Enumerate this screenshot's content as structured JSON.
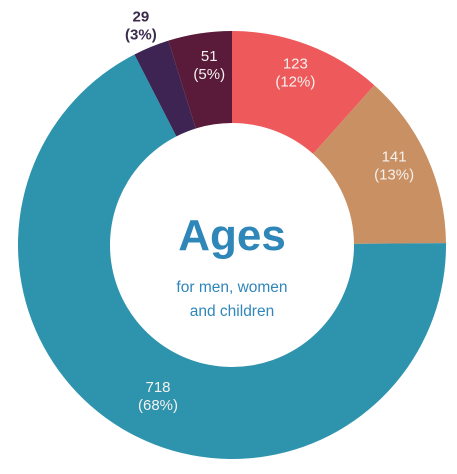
{
  "chart_data": {
    "type": "pie",
    "donut": true,
    "title": "Ages",
    "subtitle_lines": [
      "for men, women",
      "and children"
    ],
    "slices": [
      {
        "value": 123,
        "percent_label": "(12%)",
        "color": "#ee5a5c"
      },
      {
        "value": 141,
        "percent_label": "(13%)",
        "color": "#c99063"
      },
      {
        "value": 718,
        "percent_label": "(68%)",
        "color": "#2e94ad"
      },
      {
        "value": 29,
        "percent_label": "(3%)",
        "color": "#3d2452"
      },
      {
        "value": 51,
        "percent_label": "(5%)",
        "color": "#5a1b3a"
      }
    ],
    "start": "top",
    "direction": "clockwise",
    "legend": "none"
  }
}
